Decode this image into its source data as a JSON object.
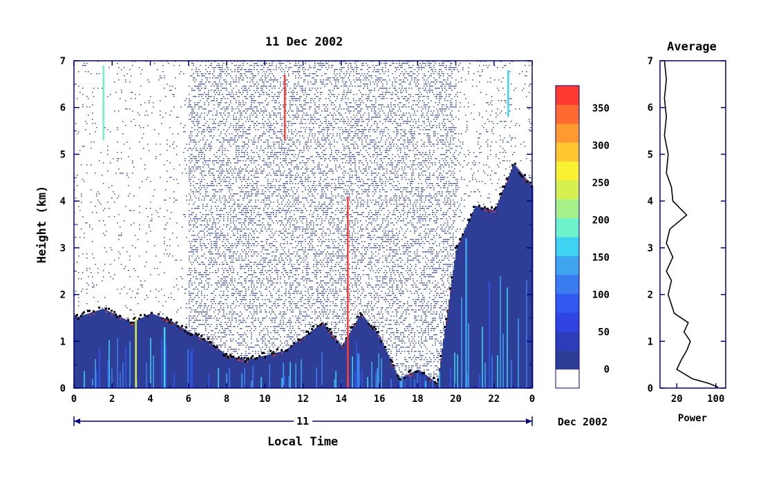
{
  "chart_data": [
    {
      "type": "heatmap",
      "title": "11 Dec 2002",
      "xlabel": "Local Time",
      "ylabel": "Height (km)",
      "xlim": [
        0,
        24
      ],
      "ylim": [
        0,
        7
      ],
      "x_ticks": [
        "0",
        "2",
        "4",
        "6",
        "8",
        "10",
        "12",
        "14",
        "16",
        "18",
        "20",
        "22",
        "0"
      ],
      "y_ticks": [
        "0",
        "1",
        "2",
        "3",
        "4",
        "5",
        "6",
        "7"
      ],
      "date_bar_label": "11",
      "date_suffix": "Dec 2002",
      "colorbar": {
        "min": 0,
        "max": 380,
        "ticks": [
          "0",
          "50",
          "100",
          "150",
          "200",
          "250",
          "300",
          "350"
        ],
        "colors": [
          "#ffffff",
          "#2e3d95",
          "#2b3db8",
          "#2f43e0",
          "#3058f0",
          "#3a7cf0",
          "#3ea4ee",
          "#3fd3f2",
          "#6ef2cc",
          "#a6f08a",
          "#d6f050",
          "#f8f030",
          "#ffc830",
          "#ff9a30",
          "#ff6a30",
          "#ff3a30"
        ]
      },
      "features": {
        "boundary_layer_top_km": [
          [
            0.0,
            1.5
          ],
          [
            1.5,
            1.7
          ],
          [
            2.0,
            1.6
          ],
          [
            3.0,
            1.4
          ],
          [
            4.0,
            1.6
          ],
          [
            5.0,
            1.45
          ],
          [
            6.0,
            1.2
          ],
          [
            7.0,
            1.0
          ],
          [
            8.0,
            0.7
          ],
          [
            9.0,
            0.6
          ],
          [
            10.0,
            0.7
          ],
          [
            11.0,
            0.8
          ],
          [
            12.0,
            1.1
          ],
          [
            13.0,
            1.4
          ],
          [
            14.0,
            0.9
          ],
          [
            15.0,
            1.6
          ],
          [
            16.0,
            1.1
          ],
          [
            17.0,
            0.2
          ],
          [
            18.0,
            0.4
          ],
          [
            19.0,
            0.1
          ],
          [
            20.0,
            3.0
          ],
          [
            21.0,
            3.9
          ],
          [
            22.0,
            3.8
          ],
          [
            23.0,
            4.8
          ],
          [
            24.0,
            4.3
          ]
        ]
      }
    },
    {
      "type": "line",
      "title": "Average",
      "xlabel": "Power",
      "ylabel": "",
      "x_ticks": [
        "20",
        "100"
      ],
      "y_ticks": [
        "0",
        "1",
        "2",
        "3",
        "4",
        "5",
        "6",
        "7"
      ],
      "ylim": [
        0,
        7
      ],
      "xscale": "log",
      "xlim": [
        10,
        150
      ],
      "series": [
        {
          "points": [
            [
              12,
              7.0
            ],
            [
              13,
              6.6
            ],
            [
              12,
              6.2
            ],
            [
              13,
              5.8
            ],
            [
              12,
              5.4
            ],
            [
              14,
              5.0
            ],
            [
              13,
              4.6
            ],
            [
              16,
              4.3
            ],
            [
              17,
              4.0
            ],
            [
              30,
              3.7
            ],
            [
              15,
              3.4
            ],
            [
              13,
              3.1
            ],
            [
              17,
              2.8
            ],
            [
              13,
              2.5
            ],
            [
              16,
              2.3
            ],
            [
              14,
              2.0
            ],
            [
              18,
              1.6
            ],
            [
              32,
              1.4
            ],
            [
              27,
              1.2
            ],
            [
              35,
              1.0
            ],
            [
              30,
              0.8
            ],
            [
              24,
              0.6
            ],
            [
              20,
              0.4
            ],
            [
              38,
              0.2
            ],
            [
              75,
              0.1
            ],
            [
              110,
              0.02
            ]
          ]
        }
      ]
    }
  ]
}
